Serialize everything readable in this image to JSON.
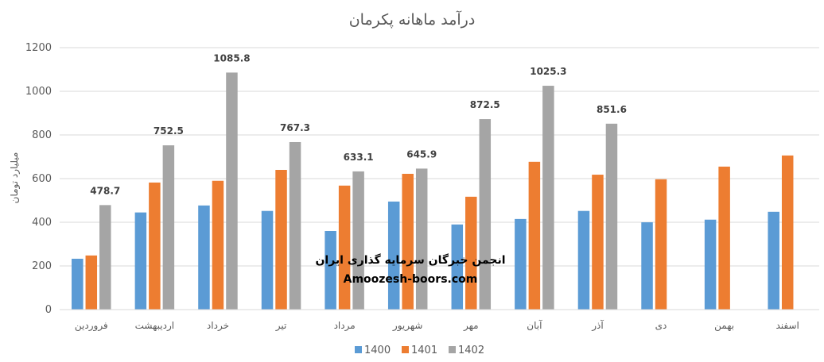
{
  "chart_data": {
    "type": "bar",
    "title": "درآمد ماهانه پکرمان",
    "ylabel": "میلیارد تومان",
    "xlabel": "",
    "ylim": [
      0,
      1200
    ],
    "yticks": [
      0,
      200,
      400,
      600,
      800,
      1000,
      1200
    ],
    "grid": true,
    "legend_position": "bottom",
    "categories": [
      "فروردین",
      "اردیبهشت",
      "خرداد",
      "تیر",
      "مرداد",
      "شهریور",
      "مهر",
      "آبان",
      "آذر",
      "دی",
      "بهمن",
      "اسفند"
    ],
    "series": [
      {
        "name": "1400",
        "color": "#5B9BD5",
        "values": [
          233,
          445,
          477,
          452,
          360,
          495,
          390,
          415,
          452,
          400,
          412,
          448
        ]
      },
      {
        "name": "1401",
        "color": "#ED7D31",
        "values": [
          248,
          582,
          590,
          640,
          568,
          622,
          517,
          677,
          618,
          597,
          655,
          706
        ]
      },
      {
        "name": "1402",
        "color": "#A5A5A5",
        "values": [
          478.7,
          752.5,
          1085.8,
          767.3,
          633.1,
          645.9,
          872.5,
          1025.3,
          851.6,
          null,
          null,
          null
        ],
        "data_labels": [
          "478.7",
          "752.5",
          "1085.8",
          "767.3",
          "633.1",
          "645.9",
          "872.5",
          "1025.3",
          "851.6",
          "",
          "",
          ""
        ]
      }
    ],
    "watermark": [
      "انجمن خبرگان سرمایه گذاری ایران",
      "Amoozesh-boors.com"
    ]
  }
}
